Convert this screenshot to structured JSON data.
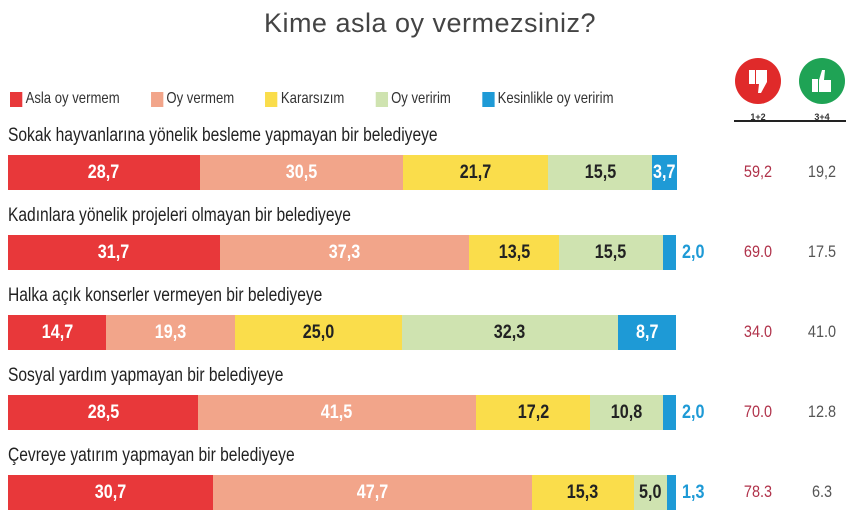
{
  "chart_data": {
    "type": "bar",
    "stacked": true,
    "orientation": "horizontal",
    "title": "Kime asla oy vermezsiniz?",
    "series": [
      {
        "name": "Asla oy vermem",
        "color": "#e8383a"
      },
      {
        "name": "Oy vermem",
        "color": "#f2a58a"
      },
      {
        "name": "Kararsızım",
        "color": "#fadd4b"
      },
      {
        "name": "Oy veririm",
        "color": "#cfe3b0"
      },
      {
        "name": "Kesinlikle oy veririm",
        "color": "#1e9ad6"
      }
    ],
    "categories": [
      "Sokak hayvanlarına yönelik besleme yapmayan bir belediyeye",
      "Kadınlara yönelik projeleri olmayan bir belediyeye",
      "Halka açık konserler vermeyen bir belediyeye",
      "Sosyal yardım yapmayan bir belediyeye",
      "Çevreye yatırım yapmayan bir belediyeye"
    ],
    "values": [
      [
        28.7,
        30.5,
        21.7,
        15.5,
        3.7
      ],
      [
        31.7,
        37.3,
        13.5,
        15.5,
        2.0
      ],
      [
        14.7,
        19.3,
        25.0,
        32.3,
        8.7
      ],
      [
        28.5,
        41.5,
        17.2,
        10.8,
        2.0
      ],
      [
        30.7,
        47.7,
        15.3,
        5.0,
        1.3
      ]
    ],
    "value_labels": [
      [
        "28,7",
        "30,5",
        "21,7",
        "15,5",
        "3,7"
      ],
      [
        "31,7",
        "37,3",
        "13,5",
        "15,5",
        "2,0"
      ],
      [
        "14,7",
        "19,3",
        "25,0",
        "32,3",
        "8,7"
      ],
      [
        "28,5",
        "41,5",
        "17,2",
        "10,8",
        "2,0"
      ],
      [
        "30,7",
        "47,7",
        "15,3",
        "5,0",
        "1,3"
      ]
    ],
    "summary_columns": [
      {
        "label": "1+2",
        "icon": "thumbs-down-icon",
        "color": "#e02a2a",
        "values": [
          "59,2",
          "69.0",
          "34.0",
          "70.0",
          "78.3"
        ]
      },
      {
        "label": "3+4",
        "icon": "thumbs-up-icon",
        "color": "#1fa355",
        "values": [
          "19,2",
          "17.5",
          "41.0",
          "12.8",
          "6.3"
        ]
      }
    ],
    "xlim": [
      0,
      100
    ]
  }
}
